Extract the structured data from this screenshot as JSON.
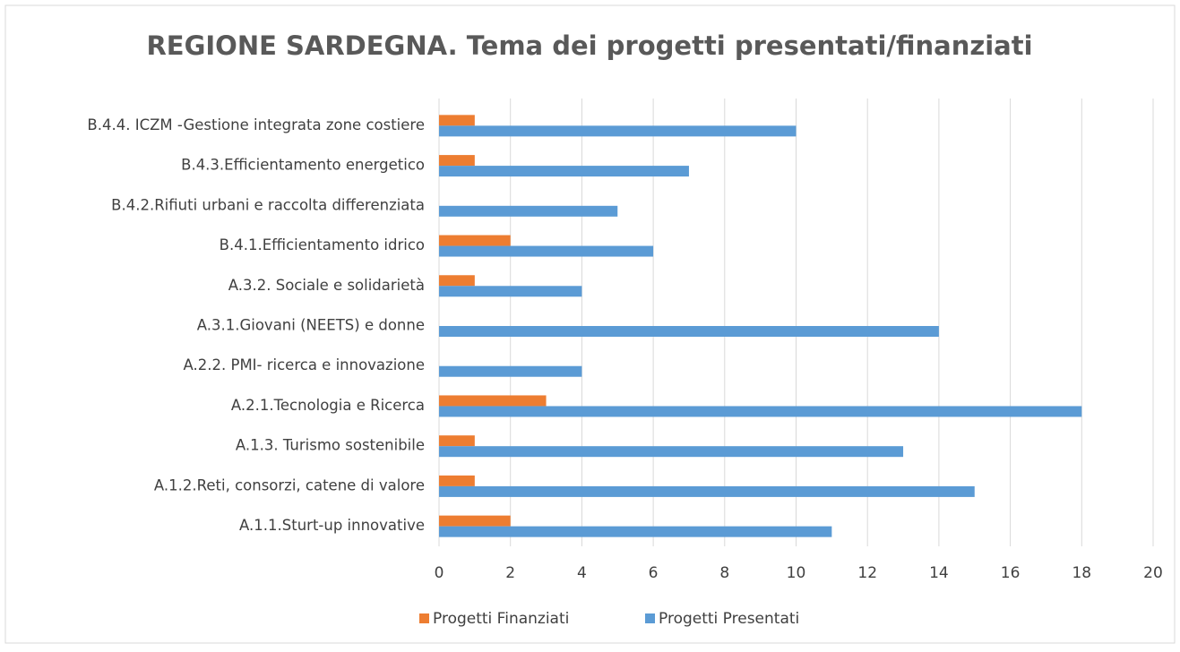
{
  "chart_data": {
    "type": "bar",
    "orientation": "horizontal",
    "title": "REGIONE SARDEGNA. Tema dei progetti presentati/finanziati",
    "categories": [
      "A.1.1.Sturt-up innovative",
      "A.1.2.Reti, consorzi, catene di valore",
      "A.1.3. Turismo sostenibile",
      "A.2.1.Tecnologia e Ricerca",
      "A.2.2. PMI- ricerca e innovazione",
      "A.3.1.Giovani (NEETS) e donne",
      "A.3.2. Sociale e solidarietà",
      "B.4.1.Efficientamento idrico",
      "B.4.2.Rifiuti urbani e raccolta differenziata",
      "B.4.3.Efficientamento energetico",
      "B.4.4. ICZM -Gestione integrata zone costiere"
    ],
    "series": [
      {
        "name": "Progetti Finanziati",
        "color": "#ed7d31",
        "values": [
          2,
          1,
          1,
          3,
          0,
          0,
          1,
          2,
          0,
          1,
          1
        ]
      },
      {
        "name": "Progetti Presentati",
        "color": "#5b9bd5",
        "values": [
          11,
          15,
          13,
          18,
          4,
          14,
          4,
          6,
          5,
          7,
          10
        ]
      }
    ],
    "xlim": [
      0,
      20
    ],
    "xticks": [
      0,
      2,
      4,
      6,
      8,
      10,
      12,
      14,
      16,
      18,
      20
    ],
    "grid": true,
    "legend": "bottom"
  }
}
